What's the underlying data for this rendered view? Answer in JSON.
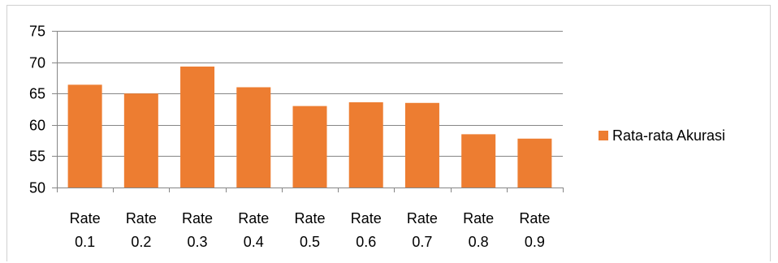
{
  "chart_data": {
    "type": "bar",
    "categories": [
      "Rate 0.1",
      "Rate 0.2",
      "Rate 0.3",
      "Rate 0.4",
      "Rate 0.5",
      "Rate 0.6",
      "Rate 0.7",
      "Rate 0.8",
      "Rate 0.9"
    ],
    "category_lines": [
      [
        "Rate",
        "0.1"
      ],
      [
        "Rate",
        "0.2"
      ],
      [
        "Rate",
        "0.3"
      ],
      [
        "Rate",
        "0.4"
      ],
      [
        "Rate",
        "0.5"
      ],
      [
        "Rate",
        "0.6"
      ],
      [
        "Rate",
        "0.7"
      ],
      [
        "Rate",
        "0.8"
      ],
      [
        "Rate",
        "0.9"
      ]
    ],
    "series": [
      {
        "name": "Rata-rata Akurasi",
        "color": "#ED7D31",
        "values": [
          66.4,
          65.0,
          69.3,
          66.0,
          63.0,
          63.6,
          63.5,
          58.5,
          57.8
        ]
      }
    ],
    "title": "",
    "xlabel": "",
    "ylabel": "",
    "ylim": [
      50,
      75
    ],
    "yticks": [
      50,
      55,
      60,
      65,
      70,
      75
    ],
    "grid": "horizontal",
    "legend_position": "right"
  }
}
